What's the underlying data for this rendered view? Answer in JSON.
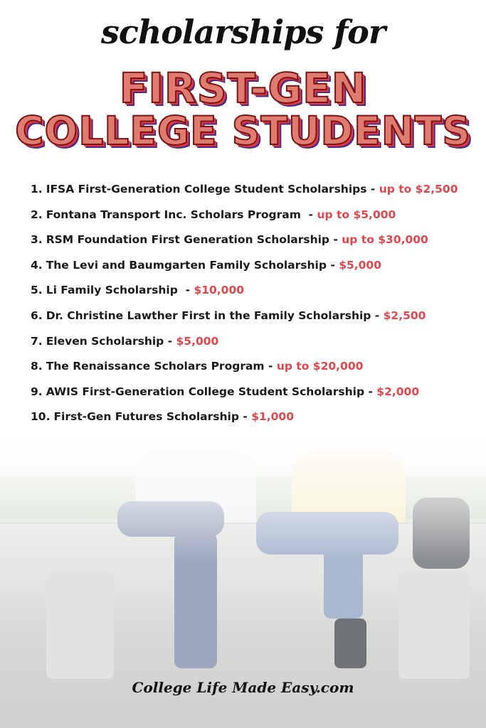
{
  "header": {
    "script_title": "scholarships for",
    "title_line1": "FIRST-GEN",
    "title_line2": "COLLEGE STUDENTS"
  },
  "colors": {
    "title_fill": "#e07b70",
    "title_outline": "#7a1414",
    "amount": "#e0464a"
  },
  "scholarships": [
    {
      "number": "1.",
      "name": "IFSA First-Generation College Student Scholarships",
      "sep": " - ",
      "amount": "up to $2,500"
    },
    {
      "number": "2.",
      "name": "Fontana Transport Inc. Scholars Program",
      "sep": "  - ",
      "amount": "up to $5,000"
    },
    {
      "number": "3.",
      "name": "RSM Foundation First Generation Scholarship",
      "sep": " - ",
      "amount": "up to $30,000"
    },
    {
      "number": "4.",
      "name": "The Levi and Baumgarten Family Scholarship",
      "sep": " - ",
      "amount": "$5,000"
    },
    {
      "number": "5.",
      "name": "Li Family Scholarship",
      "sep": "  - ",
      "amount": "$10,000"
    },
    {
      "number": "6.",
      "name": "Dr. Christine Lawther First in the Family Scholarship",
      "sep": " - ",
      "amount": "$2,500"
    },
    {
      "number": "7.",
      "name": "Eleven Scholarship",
      "sep": " - ",
      "amount": "$5,000"
    },
    {
      "number": "8.",
      "name": "The Renaissance Scholars Program",
      "sep": " - ",
      "amount": "up to $20,000"
    },
    {
      "number": "9.",
      "name": "AWIS First-Generation College Student Scholarship",
      "sep": " - ",
      "amount": "$2,000"
    },
    {
      "number": "10.",
      "name": "First-Gen Futures Scholarship",
      "sep": " - ",
      "amount": "$1,000"
    }
  ],
  "footer": {
    "brand": "College Life Made Easy.com"
  }
}
